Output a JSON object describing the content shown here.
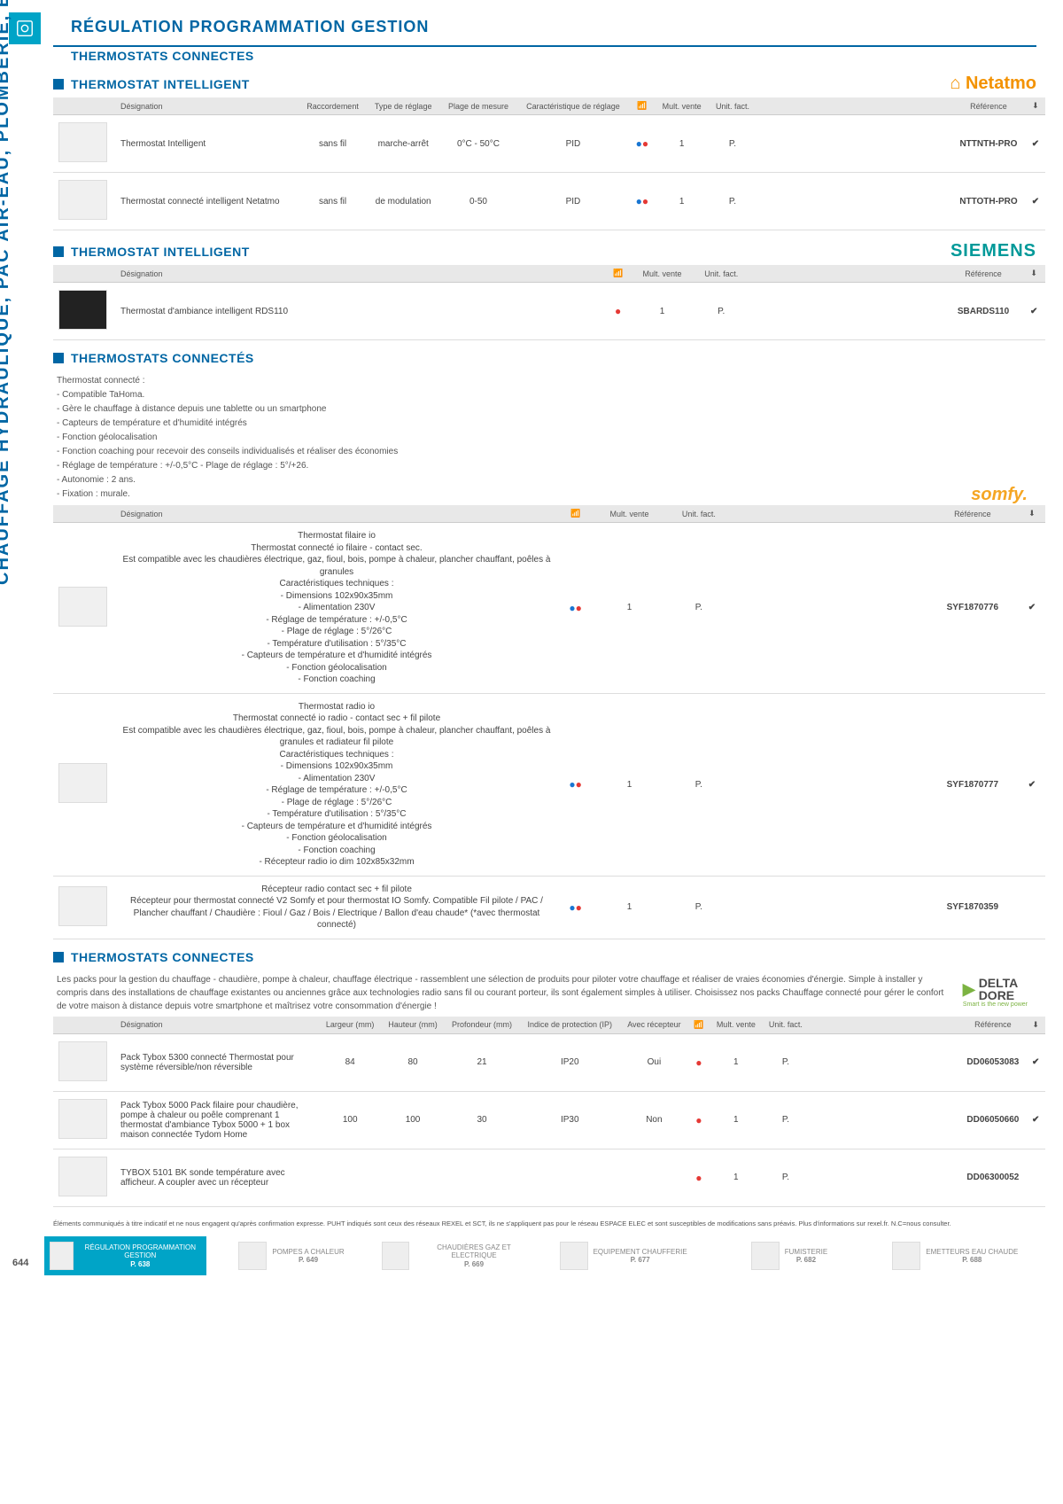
{
  "page_number": "644",
  "sidebar": "CHAUFFAGE HYDRAULIQUE, PAC AIR-EAU, PLOMBERIE, ET SANITAIRE",
  "main_title": "RÉGULATION PROGRAMMATION GESTION",
  "sub_title": "THERMOSTATS CONNECTES",
  "footnote": "Éléments communiqués à titre indicatif et ne nous engagent qu'après confirmation expresse. PUHT indiqués sont ceux des réseaux REXEL et SCT, ils ne s'appliquent pas pour le réseau ESPACE ELEC et sont susceptibles de modifications sans préavis. Plus d'informations sur rexel.fr. N.C=nous consulter.",
  "cols": {
    "designation": "Désignation",
    "raccordement": "Raccordement",
    "type_reglage": "Type de réglage",
    "plage": "Plage de mesure",
    "carac": "Caractéristique de réglage",
    "wifi": "📶",
    "mult": "Mult. vente",
    "unit": "Unit. fact.",
    "ref": "Référence",
    "stock": "⬇",
    "largeur": "Largeur (mm)",
    "hauteur": "Hauteur (mm)",
    "profondeur": "Profondeur (mm)",
    "ip": "Indice de protection (IP)",
    "recepteur": "Avec récepteur"
  },
  "sec1": {
    "title": "THERMOSTAT INTELLIGENT",
    "brand": "Netatmo",
    "rows": [
      {
        "d": "Thermostat Intelligent",
        "rac": "sans fil",
        "type": "marche-arrêt",
        "plage": "0°C - 50°C",
        "carac": "PID",
        "mult": "1",
        "unit": "P.",
        "ref": "NTTNTH-PRO",
        "chk": "✔"
      },
      {
        "d": "Thermostat connecté intelligent Netatmo",
        "rac": "sans fil",
        "type": "de modulation",
        "plage": "0-50",
        "carac": "PID",
        "mult": "1",
        "unit": "P.",
        "ref": "NTTOTH-PRO",
        "chk": "✔"
      }
    ]
  },
  "sec2": {
    "title": "THERMOSTAT INTELLIGENT",
    "brand": "SIEMENS",
    "rows": [
      {
        "d": "Thermostat d'ambiance intelligent RDS110",
        "mult": "1",
        "unit": "P.",
        "ref": "SBARDS110",
        "chk": "✔"
      }
    ]
  },
  "sec3": {
    "title": "THERMOSTATS CONNECTÉS",
    "brand": "somfy.",
    "intro": [
      "Thermostat connecté :",
      "- Compatible TaHoma.",
      "- Gère le chauffage à distance depuis une tablette ou un smartphone",
      "- Capteurs de température et d'humidité intégrés",
      "- Fonction géolocalisation",
      "- Fonction coaching pour recevoir des conseils individualisés et réaliser des économies",
      "- Réglage de température : +/-0,5°C - Plage de réglage : 5°/+26.",
      "- Autonomie : 2 ans.",
      "- Fixation : murale."
    ],
    "rows": [
      {
        "d": "Thermostat filaire io\nThermostat connecté io filaire - contact sec.\nEst compatible avec les chaudières électrique, gaz, fioul, bois, pompe à chaleur, plancher chauffant, poêles à granules\nCaractéristiques techniques :\n- Dimensions 102x90x35mm\n- Alimentation 230V\n- Réglage de température : +/-0,5°C\n- Plage de réglage : 5°/26°C\n- Température d'utilisation : 5°/35°C\n- Capteurs de température et d'humidité intégrés\n- Fonction géolocalisation\n- Fonction coaching",
        "mult": "1",
        "unit": "P.",
        "ref": "SYF1870776",
        "chk": "✔"
      },
      {
        "d": "Thermostat radio io\nThermostat connecté io radio - contact sec + fil pilote\nEst compatible avec les chaudières électrique, gaz, fioul, bois, pompe à chaleur, plancher chauffant, poêles à granules et radiateur fil pilote\nCaractéristiques techniques :\n- Dimensions 102x90x35mm\n- Alimentation 230V\n- Réglage de température : +/-0,5°C\n- Plage de réglage : 5°/26°C\n- Température d'utilisation : 5°/35°C\n- Capteurs de température et d'humidité intégrés\n- Fonction géolocalisation\n- Fonction coaching\n- Récepteur radio io dim 102x85x32mm",
        "mult": "1",
        "unit": "P.",
        "ref": "SYF1870777",
        "chk": "✔"
      },
      {
        "d": "Récepteur radio contact sec + fil pilote\nRécepteur pour thermostat connecté V2 Somfy et pour thermostat IO Somfy. Compatible Fil pilote / PAC / Plancher chauffant / Chaudière : Fioul / Gaz / Bois / Electrique / Ballon d'eau chaude* (*avec thermostat connecté)",
        "mult": "1",
        "unit": "P.",
        "ref": "SYF1870359",
        "chk": ""
      }
    ]
  },
  "sec4": {
    "title": "THERMOSTATS CONNECTES",
    "brand_l1": "DELTA",
    "brand_l2": "DORE",
    "brand_tag": "Smart is the new power",
    "intro": "Les packs pour la gestion du chauffage - chaudière, pompe à chaleur, chauffage électrique - rassemblent une sélection de produits pour piloter votre chauffage et réaliser de vraies économies d'énergie. Simple à installer y compris dans des installations de chauffage existantes ou anciennes grâce aux technologies radio sans fil ou courant porteur, ils sont également simples à utiliser. Choisissez nos packs Chauffage connecté pour gérer le confort de votre maison à distance depuis votre smartphone et maîtrisez votre consommation d'énergie !",
    "rows": [
      {
        "d": "Pack Tybox 5300 connecté Thermostat pour système réversible/non réversible",
        "l": "84",
        "h": "80",
        "p": "21",
        "ip": "IP20",
        "rec": "Oui",
        "mult": "1",
        "unit": "P.",
        "ref": "DD06053083",
        "chk": "✔"
      },
      {
        "d": "Pack Tybox 5000 Pack filaire pour chaudière, pompe à chaleur ou poêle comprenant 1 thermostat d'ambiance Tybox 5000 + 1 box maison connectée Tydom Home",
        "l": "100",
        "h": "100",
        "p": "30",
        "ip": "IP30",
        "rec": "Non",
        "mult": "1",
        "unit": "P.",
        "ref": "DD06050660",
        "chk": "✔"
      },
      {
        "d": "TYBOX 5101 BK sonde température avec afficheur. A coupler avec un récepteur",
        "l": "",
        "h": "",
        "p": "",
        "ip": "",
        "rec": "",
        "mult": "1",
        "unit": "P.",
        "ref": "DD06300052",
        "chk": ""
      }
    ]
  },
  "footer": [
    {
      "t": "RÉGULATION PROGRAMMATION GESTION",
      "p": "P. 638",
      "active": true
    },
    {
      "t": "POMPES A CHALEUR",
      "p": "P. 649"
    },
    {
      "t": "CHAUDIÈRES GAZ ET ELECTRIQUE",
      "p": "P. 669"
    },
    {
      "t": "EQUIPEMENT CHAUFFERIE",
      "p": "P. 677"
    },
    {
      "t": "FUMISTERIE",
      "p": "P. 682"
    },
    {
      "t": "EMETTEURS EAU CHAUDE",
      "p": "P. 688"
    }
  ]
}
